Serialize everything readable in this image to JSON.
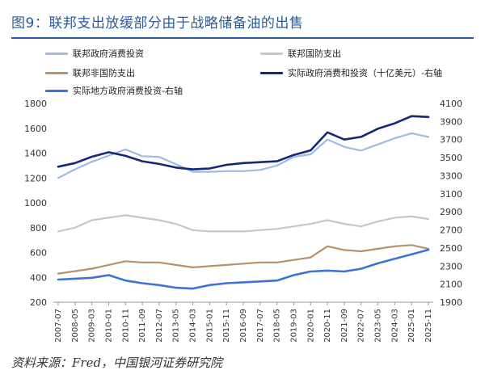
{
  "title": "图9：联邦支出放缓部分由于战略储备油的出售",
  "source": "资料来源：Fred，中国银河证券研究院",
  "chart_data": {
    "type": "line",
    "x": [
      "2007-07",
      "2008-05",
      "2009-03",
      "2010-01",
      "2010-11",
      "2011-09",
      "2012-07",
      "2013-05",
      "2014-03",
      "2015-01",
      "2015-11",
      "2016-09",
      "2017-07",
      "2018-05",
      "2019-03",
      "2020-01",
      "2020-11",
      "2021-09",
      "2022-07",
      "2023-05",
      "2024-03",
      "2025-01",
      "2025-11"
    ],
    "xlabel": "",
    "ylabel": "",
    "ylim": [
      200,
      1800
    ],
    "ylim_right": [
      1900,
      4100
    ],
    "yticks": [
      200,
      400,
      600,
      800,
      1000,
      1200,
      1400,
      1600,
      1800
    ],
    "yticks_right": [
      1900,
      2100,
      2300,
      2500,
      2700,
      2900,
      3100,
      3300,
      3500,
      3700,
      3900,
      4100
    ],
    "grid": false,
    "legend": "top",
    "series": [
      {
        "name": "联邦政府消费投资",
        "axis": "left",
        "color": "#9dbbe3",
        "values": [
          1200,
          1270,
          1330,
          1380,
          1430,
          1375,
          1370,
          1310,
          1250,
          1250,
          1255,
          1255,
          1265,
          1300,
          1370,
          1390,
          1510,
          1450,
          1420,
          1470,
          1520,
          1560,
          1530
        ]
      },
      {
        "name": "联邦国防支出",
        "axis": "left",
        "color": "#c7c7c7",
        "values": [
          770,
          800,
          860,
          880,
          900,
          880,
          860,
          830,
          780,
          770,
          770,
          770,
          780,
          790,
          810,
          830,
          860,
          830,
          810,
          850,
          880,
          890,
          870
        ]
      },
      {
        "name": "联邦非国防支出",
        "axis": "left",
        "color": "#b8916a",
        "values": [
          430,
          450,
          470,
          500,
          530,
          520,
          520,
          500,
          480,
          490,
          500,
          510,
          520,
          520,
          540,
          560,
          650,
          620,
          610,
          630,
          650,
          660,
          630
        ]
      },
      {
        "name": "实际政府消费和投资（十亿美元）-右轴",
        "axis": "right",
        "color": "#14287a",
        "values": [
          3400,
          3440,
          3510,
          3560,
          3520,
          3460,
          3430,
          3390,
          3370,
          3380,
          3420,
          3440,
          3450,
          3460,
          3530,
          3580,
          3780,
          3700,
          3730,
          3820,
          3880,
          3960,
          3950
        ]
      },
      {
        "name": "实际地方政府消费投资-右轴",
        "axis": "right",
        "color": "#3d73d6",
        "values": [
          2150,
          2160,
          2170,
          2200,
          2140,
          2110,
          2090,
          2060,
          2050,
          2090,
          2110,
          2120,
          2130,
          2140,
          2200,
          2240,
          2250,
          2240,
          2270,
          2330,
          2380,
          2430,
          2480
        ]
      }
    ]
  }
}
